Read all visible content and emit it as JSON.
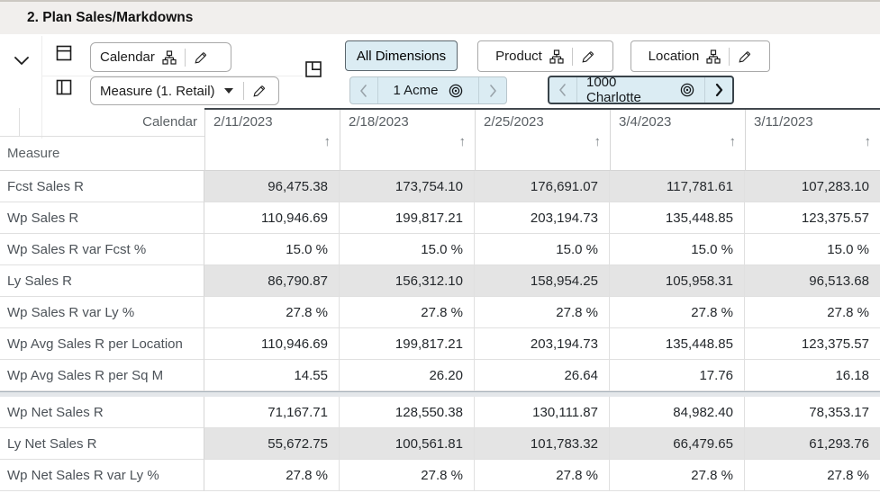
{
  "title": "2. Plan Sales/Markdowns",
  "toolbar": {
    "row_axis_label": "Calendar",
    "column_axis_label": "Measure (1. Retail)",
    "all_dimensions_label": "All Dimensions",
    "product_label": "Product",
    "location_label": "Location",
    "product_page_label": "1 Acme",
    "location_page_label": "1000 Charlotte"
  },
  "grid": {
    "corner_axis_label": "Calendar",
    "row_dimension_label": "Measure",
    "sort_icon": "↑",
    "columns": [
      "2/11/2023",
      "2/18/2023",
      "2/25/2023",
      "3/4/2023",
      "3/11/2023"
    ],
    "rows": [
      {
        "label": "Fcst Sales R",
        "shaded": true,
        "values": [
          "96,475.38",
          "173,754.10",
          "176,691.07",
          "117,781.61",
          "107,283.10"
        ]
      },
      {
        "label": "Wp Sales R",
        "shaded": false,
        "values": [
          "110,946.69",
          "199,817.21",
          "203,194.73",
          "135,448.85",
          "123,375.57"
        ]
      },
      {
        "label": "Wp Sales R var Fcst %",
        "shaded": false,
        "values": [
          "15.0 %",
          "15.0 %",
          "15.0 %",
          "15.0 %",
          "15.0 %"
        ]
      },
      {
        "label": "Ly Sales R",
        "shaded": true,
        "values": [
          "86,790.87",
          "156,312.10",
          "158,954.25",
          "105,958.31",
          "96,513.68"
        ]
      },
      {
        "label": "Wp Sales R var Ly %",
        "shaded": false,
        "values": [
          "27.8 %",
          "27.8 %",
          "27.8 %",
          "27.8 %",
          "27.8 %"
        ]
      },
      {
        "label": "Wp Avg Sales R per Location",
        "shaded": false,
        "values": [
          "110,946.69",
          "199,817.21",
          "203,194.73",
          "135,448.85",
          "123,375.57"
        ]
      },
      {
        "label": "Wp Avg Sales R per Sq M",
        "shaded": false,
        "values": [
          "14.55",
          "26.20",
          "26.64",
          "17.76",
          "16.18"
        ]
      },
      {
        "label": "Wp Net Sales R",
        "shaded": false,
        "section_break_before": true,
        "values": [
          "71,167.71",
          "128,550.38",
          "130,111.87",
          "84,982.40",
          "78,353.17"
        ]
      },
      {
        "label": "Ly Net Sales R",
        "shaded": true,
        "values": [
          "55,672.75",
          "100,561.81",
          "101,783.32",
          "66,479.65",
          "61,293.76"
        ]
      },
      {
        "label": "Wp Net Sales R var Ly %",
        "shaded": false,
        "values": [
          "27.8 %",
          "27.8 %",
          "27.8 %",
          "27.8 %",
          "27.8 %"
        ]
      }
    ]
  },
  "colors": {
    "accent_blue": "#dbecf3",
    "selected_border": "#39434a",
    "shaded_cell": "#e4e4e4",
    "header_border": "#42484d"
  }
}
